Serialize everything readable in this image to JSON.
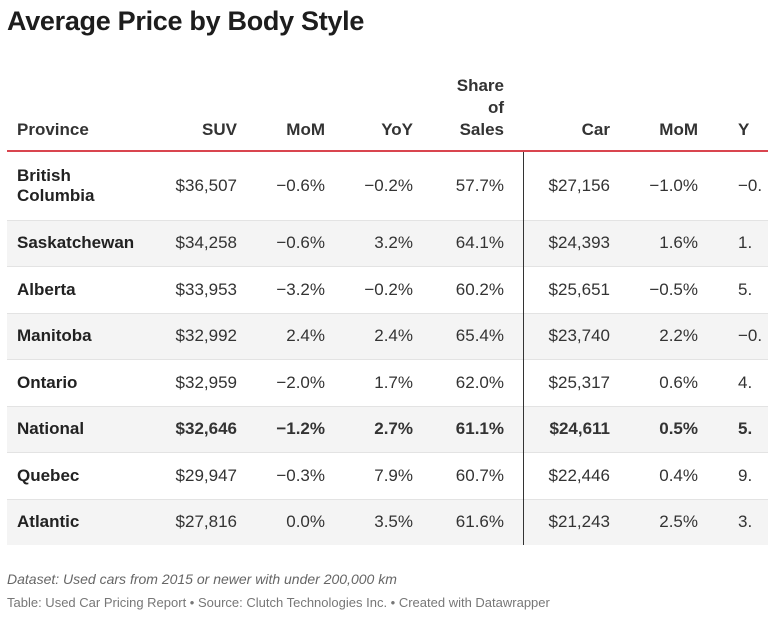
{
  "title": "Average Price by Body Style",
  "table": {
    "header": [
      "Province",
      "SUV",
      "MoM",
      "YoY",
      "Share of Sales",
      "Car",
      "MoM",
      "Y"
    ],
    "rows": [
      [
        "British Columbia",
        "$36,507",
        "−0.6%",
        "−0.2%",
        "57.7%",
        "$27,156",
        "−1.0%",
        "−0."
      ],
      [
        "Saskatchewan",
        "$34,258",
        "−0.6%",
        "3.2%",
        "64.1%",
        "$24,393",
        "1.6%",
        "1."
      ],
      [
        "Alberta",
        "$33,953",
        "−3.2%",
        "−0.2%",
        "60.2%",
        "$25,651",
        "−0.5%",
        "5."
      ],
      [
        "Manitoba",
        "$32,992",
        "2.4%",
        "2.4%",
        "65.4%",
        "$23,740",
        "2.2%",
        "−0."
      ],
      [
        "Ontario",
        "$32,959",
        "−2.0%",
        "1.7%",
        "62.0%",
        "$25,317",
        "0.6%",
        "4."
      ],
      [
        "National",
        "$32,646",
        "−1.2%",
        "2.7%",
        "61.1%",
        "$24,611",
        "0.5%",
        "5."
      ],
      [
        "Quebec",
        "$29,947",
        "−0.3%",
        "7.9%",
        "60.7%",
        "$22,446",
        "0.4%",
        "9."
      ],
      [
        "Atlantic",
        "$27,816",
        "0.0%",
        "3.5%",
        "61.6%",
        "$21,243",
        "2.5%",
        "3."
      ]
    ]
  },
  "footer": {
    "note": "Dataset: Used cars from 2015 or newer with under 200,000 km",
    "source": "Table: Used Car Pricing Report • Source: Clutch Technologies Inc. • Created with Datawrapper"
  }
}
